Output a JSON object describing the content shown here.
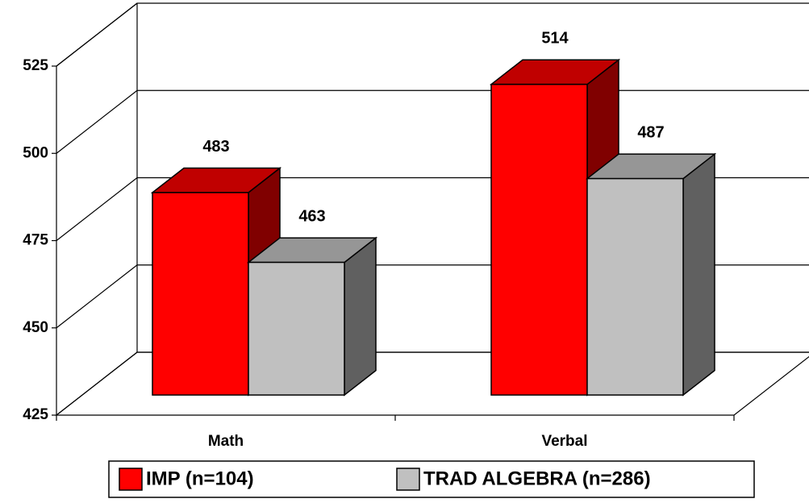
{
  "chart_data": {
    "type": "bar3d",
    "categories": [
      "Math",
      "Verbal"
    ],
    "series": [
      {
        "name": "IMP (n=104)",
        "color": "#ff0000",
        "values": [
          483,
          514
        ]
      },
      {
        "name": "TRAD ALGEBRA (n=286)",
        "color": "#c0c0c0",
        "values": [
          463,
          487
        ]
      }
    ],
    "ylim": [
      425,
      525
    ],
    "yticks": [
      425,
      450,
      475,
      500,
      525
    ],
    "grid": true,
    "legend": "bottom"
  }
}
